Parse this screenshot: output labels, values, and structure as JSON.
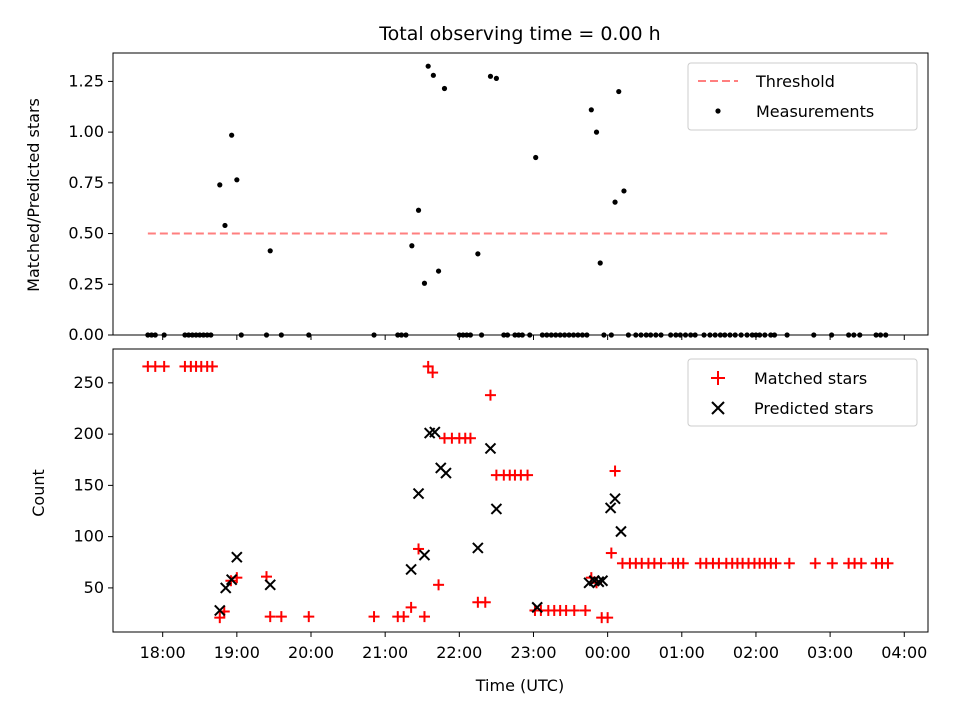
{
  "chart_data": [
    {
      "type": "scatter",
      "title": "Total observing time = 0.00 h",
      "ylabel": "Matched/Predicted stars",
      "xlabel": "",
      "x_unit": "hours since 00:00 UTC (ticks 18:00–04:00)",
      "ylim": [
        0,
        1.39
      ],
      "yticks": [
        0.0,
        0.25,
        0.5,
        0.75,
        1.0,
        1.25
      ],
      "ytick_labels": [
        "0.00",
        "0.25",
        "0.50",
        "0.75",
        "1.00",
        "1.25"
      ],
      "legend": {
        "placement": "top-right",
        "entries": [
          "Threshold",
          "Measurements"
        ]
      },
      "threshold": {
        "name": "Threshold",
        "value": 0.5,
        "x_range": [
          -6.2,
          3.77
        ],
        "color": "#ff7f7f"
      },
      "series": [
        {
          "name": "Measurements",
          "color": "#000000",
          "points": [
            [
              -6.2,
              0
            ],
            [
              -6.15,
              0
            ],
            [
              -6.1,
              0
            ],
            [
              -5.98,
              0
            ],
            [
              -5.7,
              0
            ],
            [
              -5.65,
              0
            ],
            [
              -5.6,
              0
            ],
            [
              -5.55,
              0
            ],
            [
              -5.5,
              0
            ],
            [
              -5.45,
              0
            ],
            [
              -5.4,
              0
            ],
            [
              -5.35,
              0
            ],
            [
              -5.23,
              0.74
            ],
            [
              -5.16,
              0.54
            ],
            [
              -5.07,
              0.985
            ],
            [
              -5.0,
              0.765
            ],
            [
              -4.94,
              0
            ],
            [
              -4.55,
              0.415
            ],
            [
              -4.6,
              0
            ],
            [
              -4.4,
              0
            ],
            [
              -4.03,
              0
            ],
            [
              -3.15,
              0
            ],
            [
              -2.83,
              0
            ],
            [
              -2.78,
              0
            ],
            [
              -2.72,
              0
            ],
            [
              -2.64,
              0.44
            ],
            [
              -2.55,
              0.615
            ],
            [
              -2.47,
              0.255
            ],
            [
              -2.42,
              1.325
            ],
            [
              -2.35,
              1.28
            ],
            [
              -2.28,
              0.315
            ],
            [
              -2.2,
              1.215
            ],
            [
              -2.0,
              0
            ],
            [
              -1.95,
              0
            ],
            [
              -1.9,
              0
            ],
            [
              -1.85,
              0
            ],
            [
              -1.75,
              0.4
            ],
            [
              -1.7,
              0
            ],
            [
              -1.58,
              1.275
            ],
            [
              -1.5,
              1.265
            ],
            [
              -1.4,
              0
            ],
            [
              -1.35,
              0
            ],
            [
              -1.25,
              0
            ],
            [
              -1.2,
              0
            ],
            [
              -1.15,
              0
            ],
            [
              -1.05,
              0
            ],
            [
              -0.97,
              0.875
            ],
            [
              -0.88,
              0
            ],
            [
              -0.82,
              0
            ],
            [
              -0.76,
              0
            ],
            [
              -0.7,
              0
            ],
            [
              -0.64,
              0
            ],
            [
              -0.58,
              0
            ],
            [
              -0.52,
              0
            ],
            [
              -0.46,
              0
            ],
            [
              -0.4,
              0
            ],
            [
              -0.34,
              0
            ],
            [
              -0.28,
              0
            ],
            [
              -0.22,
              1.11
            ],
            [
              -0.15,
              1.0
            ],
            [
              -0.1,
              0.355
            ],
            [
              -0.05,
              0
            ],
            [
              0.05,
              0
            ],
            [
              0.1,
              0.655
            ],
            [
              0.15,
              1.2
            ],
            [
              0.22,
              0.71
            ],
            [
              0.28,
              0
            ],
            [
              0.38,
              0
            ],
            [
              0.45,
              0
            ],
            [
              0.52,
              0
            ],
            [
              0.58,
              0
            ],
            [
              0.65,
              0
            ],
            [
              0.72,
              0
            ],
            [
              0.85,
              0
            ],
            [
              0.92,
              0
            ],
            [
              0.98,
              0
            ],
            [
              1.05,
              0
            ],
            [
              1.12,
              0
            ],
            [
              1.18,
              0
            ],
            [
              1.3,
              0
            ],
            [
              1.38,
              0
            ],
            [
              1.45,
              0
            ],
            [
              1.52,
              0
            ],
            [
              1.58,
              0
            ],
            [
              1.65,
              0
            ],
            [
              1.72,
              0
            ],
            [
              1.8,
              0
            ],
            [
              1.88,
              0
            ],
            [
              1.95,
              0
            ],
            [
              2.0,
              0
            ],
            [
              2.05,
              0
            ],
            [
              2.12,
              0
            ],
            [
              2.2,
              0
            ],
            [
              2.25,
              0
            ],
            [
              2.42,
              0
            ],
            [
              2.78,
              0
            ],
            [
              3.02,
              0
            ],
            [
              3.25,
              0
            ],
            [
              3.32,
              0
            ],
            [
              3.4,
              0
            ],
            [
              3.62,
              0
            ],
            [
              3.68,
              0
            ],
            [
              3.75,
              0
            ]
          ]
        }
      ]
    },
    {
      "type": "scatter",
      "title": "",
      "xlabel": "Time (UTC)",
      "ylabel": "Count",
      "xlim": [
        -6.67,
        4.32
      ],
      "ylim": [
        7,
        283
      ],
      "xticks": [
        -6,
        -5,
        -4,
        -3,
        -2,
        -1,
        0,
        1,
        2,
        3,
        4
      ],
      "xtick_labels": [
        "18:00",
        "19:00",
        "20:00",
        "21:00",
        "22:00",
        "23:00",
        "00:00",
        "01:00",
        "02:00",
        "03:00",
        "04:00"
      ],
      "yticks": [
        50,
        100,
        150,
        200,
        250
      ],
      "ytick_labels": [
        "50",
        "100",
        "150",
        "200",
        "250"
      ],
      "legend": {
        "placement": "top-right",
        "entries": [
          "Matched stars",
          "Predicted stars"
        ]
      },
      "series": [
        {
          "name": "Matched stars",
          "marker": "+",
          "color": "#ff0000",
          "points": [
            [
              -6.2,
              266
            ],
            [
              -6.1,
              266
            ],
            [
              -5.98,
              266
            ],
            [
              -5.7,
              266
            ],
            [
              -5.62,
              266
            ],
            [
              -5.55,
              266
            ],
            [
              -5.48,
              266
            ],
            [
              -5.4,
              266
            ],
            [
              -5.33,
              266
            ],
            [
              -5.23,
              21
            ],
            [
              -5.17,
              27
            ],
            [
              -5.08,
              57
            ],
            [
              -5.0,
              60
            ],
            [
              -4.6,
              61
            ],
            [
              -4.55,
              22
            ],
            [
              -4.4,
              22
            ],
            [
              -4.03,
              22
            ],
            [
              -3.15,
              22
            ],
            [
              -2.83,
              22
            ],
            [
              -2.75,
              22
            ],
            [
              -2.65,
              31
            ],
            [
              -2.55,
              88
            ],
            [
              -2.47,
              22
            ],
            [
              -2.42,
              266
            ],
            [
              -2.36,
              260
            ],
            [
              -2.28,
              53
            ],
            [
              -2.2,
              196
            ],
            [
              -2.1,
              196
            ],
            [
              -2.0,
              196
            ],
            [
              -1.92,
              196
            ],
            [
              -1.85,
              196
            ],
            [
              -1.75,
              36
            ],
            [
              -1.65,
              36
            ],
            [
              -1.58,
              238
            ],
            [
              -1.5,
              160
            ],
            [
              -1.4,
              160
            ],
            [
              -1.32,
              160
            ],
            [
              -1.25,
              160
            ],
            [
              -1.17,
              160
            ],
            [
              -1.08,
              160
            ],
            [
              -0.98,
              28
            ],
            [
              -0.9,
              28
            ],
            [
              -0.8,
              28
            ],
            [
              -0.72,
              28
            ],
            [
              -0.64,
              28
            ],
            [
              -0.56,
              28
            ],
            [
              -0.45,
              28
            ],
            [
              -0.3,
              28
            ],
            [
              -0.22,
              60
            ],
            [
              -0.15,
              55
            ],
            [
              -0.08,
              21
            ],
            [
              0.0,
              21
            ],
            [
              0.05,
              84
            ],
            [
              0.1,
              164
            ],
            [
              0.2,
              74
            ],
            [
              0.3,
              74
            ],
            [
              0.38,
              74
            ],
            [
              0.46,
              74
            ],
            [
              0.55,
              74
            ],
            [
              0.63,
              74
            ],
            [
              0.72,
              74
            ],
            [
              0.88,
              74
            ],
            [
              0.95,
              74
            ],
            [
              1.02,
              74
            ],
            [
              1.25,
              74
            ],
            [
              1.33,
              74
            ],
            [
              1.42,
              74
            ],
            [
              1.5,
              74
            ],
            [
              1.6,
              74
            ],
            [
              1.68,
              74
            ],
            [
              1.75,
              74
            ],
            [
              1.82,
              74
            ],
            [
              1.9,
              74
            ],
            [
              1.98,
              74
            ],
            [
              2.05,
              74
            ],
            [
              2.12,
              74
            ],
            [
              2.2,
              74
            ],
            [
              2.27,
              74
            ],
            [
              2.45,
              74
            ],
            [
              2.8,
              74
            ],
            [
              3.03,
              74
            ],
            [
              3.25,
              74
            ],
            [
              3.33,
              74
            ],
            [
              3.42,
              74
            ],
            [
              3.62,
              74
            ],
            [
              3.7,
              74
            ],
            [
              3.78,
              74
            ]
          ]
        },
        {
          "name": "Predicted stars",
          "marker": "x",
          "color": "#000000",
          "points": [
            [
              -5.23,
              28
            ],
            [
              -5.15,
              50
            ],
            [
              -5.07,
              58
            ],
            [
              -5.0,
              80
            ],
            [
              -4.55,
              53
            ],
            [
              -2.65,
              68
            ],
            [
              -2.55,
              142
            ],
            [
              -2.47,
              82
            ],
            [
              -2.4,
              201
            ],
            [
              -2.33,
              202
            ],
            [
              -2.25,
              167
            ],
            [
              -2.18,
              162
            ],
            [
              -1.75,
              89
            ],
            [
              -1.58,
              186
            ],
            [
              -1.5,
              127
            ],
            [
              -0.95,
              31
            ],
            [
              -0.25,
              55
            ],
            [
              -0.18,
              57
            ],
            [
              -0.12,
              56
            ],
            [
              -0.07,
              57
            ],
            [
              0.04,
              128
            ],
            [
              0.1,
              137
            ],
            [
              0.18,
              105
            ]
          ]
        }
      ]
    }
  ]
}
